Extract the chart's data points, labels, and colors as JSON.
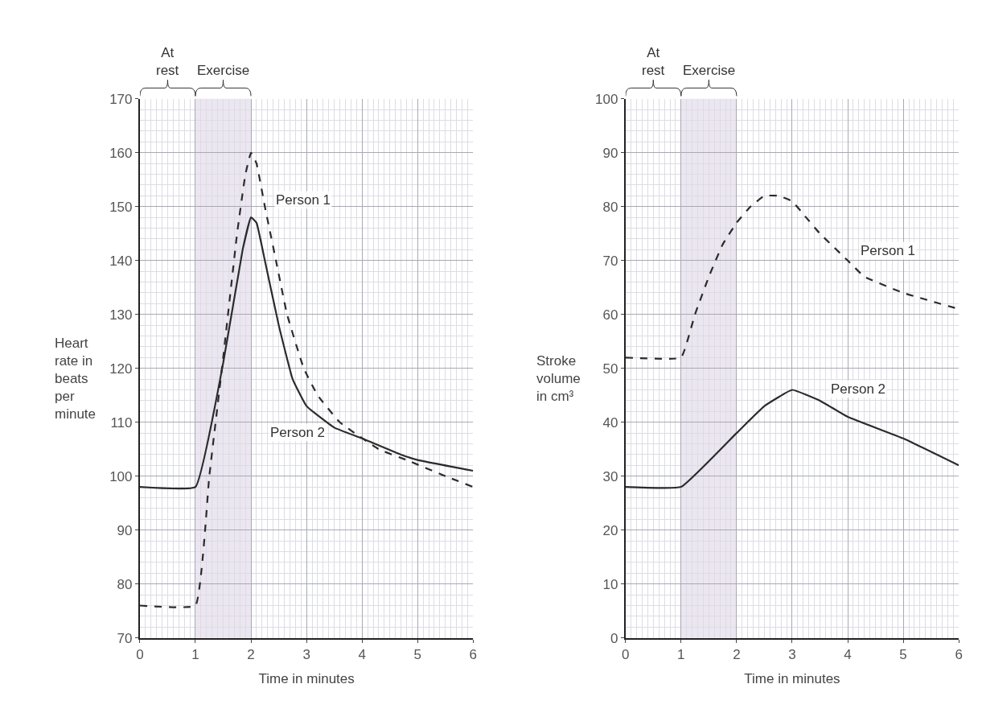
{
  "chart_data": [
    {
      "type": "line",
      "xlabel": "Time in minutes",
      "ylabel": "Heart rate in beats per minute",
      "xlim": [
        0,
        6
      ],
      "xticks": [
        0,
        1,
        2,
        3,
        4,
        5,
        6
      ],
      "ylim": [
        70,
        170
      ],
      "yticks": [
        70,
        80,
        90,
        100,
        110,
        120,
        130,
        140,
        150,
        160,
        170
      ],
      "grid": true,
      "annotations": [
        "At rest",
        "Exercise"
      ],
      "bands": [
        {
          "axis": "x",
          "from": 1,
          "to": 2,
          "color": "#e4dcea"
        }
      ],
      "series": [
        {
          "name": "Person 1",
          "color": "#2b2b2b",
          "line_style": "dashed",
          "x": [
            0,
            1,
            1.25,
            1.5,
            1.75,
            1.9,
            2,
            2.1,
            2.25,
            2.45,
            2.65,
            2.95,
            3.2,
            3.6,
            4.3,
            4.8,
            5.5,
            6
          ],
          "values": [
            76,
            76,
            100,
            122,
            145,
            156,
            160,
            158,
            150,
            140,
            130,
            120,
            115,
            110,
            105,
            103,
            100,
            98
          ]
        },
        {
          "name": "Person 2",
          "color": "#2b2b2b",
          "line_style": "solid",
          "x": [
            0,
            1,
            1.5,
            1.85,
            2,
            2.1,
            2.25,
            2.5,
            2.75,
            3,
            3.5,
            4,
            4.7,
            5,
            6
          ],
          "values": [
            98,
            98,
            121,
            142,
            148,
            147,
            140,
            128,
            118,
            113,
            109,
            107,
            104,
            103,
            101
          ]
        }
      ]
    },
    {
      "type": "line",
      "xlabel": "Time in minutes",
      "ylabel": "Stroke volume in cm³",
      "xlim": [
        0,
        6
      ],
      "xticks": [
        0,
        1,
        2,
        3,
        4,
        5,
        6
      ],
      "ylim": [
        0,
        100
      ],
      "yticks": [
        0,
        10,
        20,
        30,
        40,
        50,
        60,
        70,
        80,
        90,
        100
      ],
      "grid": true,
      "annotations": [
        "At rest",
        "Exercise"
      ],
      "bands": [
        {
          "axis": "x",
          "from": 1,
          "to": 2,
          "color": "#e4dcea"
        }
      ],
      "series": [
        {
          "name": "Person 1",
          "color": "#2b2b2b",
          "line_style": "dashed",
          "x": [
            0,
            1,
            1.25,
            1.5,
            1.75,
            2,
            2.25,
            2.5,
            2.75,
            3,
            3.25,
            3.5,
            4,
            4.3,
            5,
            6
          ],
          "values": [
            52,
            52,
            60,
            67,
            73,
            77,
            80,
            82,
            82,
            81,
            78,
            75,
            70,
            67,
            64,
            61
          ]
        },
        {
          "name": "Person 2",
          "color": "#2b2b2b",
          "line_style": "solid",
          "x": [
            0,
            1,
            2,
            2.5,
            3,
            3.5,
            4,
            5,
            6
          ],
          "values": [
            28,
            28,
            38,
            43,
            46,
            44,
            41,
            37,
            32
          ]
        }
      ]
    }
  ]
}
